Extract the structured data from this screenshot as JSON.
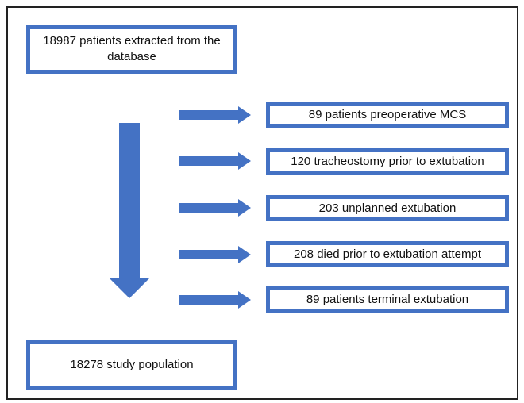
{
  "nodes": [
    {
      "label": "18987 patients extracted from the database"
    },
    {
      "label": "89 patients preoperative MCS"
    },
    {
      "label": "120 tracheostomy prior to extubation"
    },
    {
      "label": "203 unplanned extubation"
    },
    {
      "label": "208 died prior to extubation attempt"
    },
    {
      "label": "89 patients terminal extubation"
    },
    {
      "label": "18278 study population"
    }
  ]
}
